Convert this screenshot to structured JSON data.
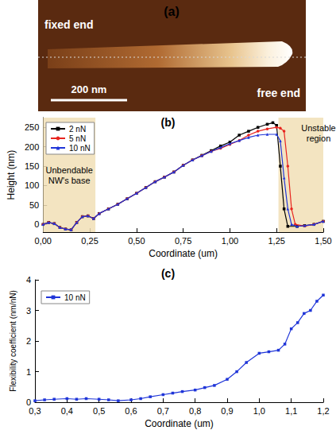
{
  "panel_a": {
    "label": "(a)",
    "fixed_end_label": "fixed end",
    "free_end_label": "free end",
    "scale_bar": "200 nm"
  },
  "chart_data": [
    {
      "type": "line",
      "title": "(b)",
      "x_label": "Coordinate (um)",
      "y_label": "Height (nm)",
      "xlim": [
        0,
        1.5
      ],
      "xticks": [
        {
          "value": 0,
          "label": "0,00"
        },
        {
          "value": 0.25,
          "label": "0,25"
        },
        {
          "value": 0.5,
          "label": "0,50"
        },
        {
          "value": 0.75,
          "label": "0,75"
        },
        {
          "value": 1,
          "label": "1,00"
        },
        {
          "value": 1.25,
          "label": "1,25"
        },
        {
          "value": 1.5,
          "label": "1,50"
        }
      ],
      "ylim": [
        -20,
        275
      ],
      "yticks": [
        0,
        50,
        100,
        150,
        200,
        250
      ],
      "grid": false,
      "legend": "top-left",
      "annotations": [
        {
          "text": "Unbendable NW's base",
          "x_range": [
            0,
            0.28
          ]
        },
        {
          "text": "Unstable region",
          "x_range": [
            1.26,
            1.5
          ]
        }
      ],
      "series": [
        {
          "name": "2 nN",
          "color": "#000000",
          "marker": "square",
          "x": [
            0,
            0.03,
            0.06,
            0.09,
            0.12,
            0.15,
            0.18,
            0.21,
            0.24,
            0.27,
            0.3,
            0.35,
            0.4,
            0.45,
            0.5,
            0.55,
            0.6,
            0.65,
            0.7,
            0.75,
            0.8,
            0.85,
            0.9,
            0.95,
            1.0,
            1.05,
            1.1,
            1.15,
            1.2,
            1.23,
            1.25,
            1.27,
            1.29,
            1.31,
            1.36,
            1.4,
            1.45,
            1.5
          ],
          "values": [
            0,
            5,
            2,
            -8,
            -12,
            -14,
            5,
            20,
            22,
            15,
            28,
            40,
            52,
            66,
            80,
            95,
            110,
            122,
            135,
            152,
            166,
            178,
            190,
            202,
            212,
            230,
            240,
            250,
            258,
            262,
            255,
            150,
            40,
            -5,
            -5,
            -3,
            0,
            8
          ]
        },
        {
          "name": "5 nN",
          "color": "#e8251f",
          "marker": "circle",
          "x": [
            0,
            0.03,
            0.06,
            0.09,
            0.12,
            0.15,
            0.18,
            0.21,
            0.24,
            0.27,
            0.3,
            0.35,
            0.4,
            0.45,
            0.5,
            0.55,
            0.6,
            0.65,
            0.7,
            0.75,
            0.8,
            0.85,
            0.9,
            0.95,
            1.0,
            1.05,
            1.1,
            1.15,
            1.2,
            1.25,
            1.27,
            1.29,
            1.31,
            1.33,
            1.35,
            1.4,
            1.45,
            1.5
          ],
          "values": [
            0,
            5,
            2,
            -8,
            -12,
            -14,
            5,
            20,
            22,
            15,
            28,
            40,
            52,
            66,
            80,
            95,
            110,
            122,
            135,
            152,
            166,
            177,
            188,
            196,
            206,
            216,
            230,
            240,
            246,
            250,
            248,
            240,
            150,
            40,
            0,
            -4,
            0,
            8
          ]
        },
        {
          "name": "10 nN",
          "color": "#1f35d8",
          "marker": "triangle",
          "x": [
            0,
            0.03,
            0.06,
            0.09,
            0.12,
            0.15,
            0.18,
            0.21,
            0.24,
            0.27,
            0.3,
            0.35,
            0.4,
            0.45,
            0.5,
            0.55,
            0.6,
            0.65,
            0.7,
            0.75,
            0.8,
            0.85,
            0.9,
            0.95,
            1.0,
            1.05,
            1.1,
            1.15,
            1.2,
            1.25,
            1.27,
            1.29,
            1.31,
            1.33,
            1.36,
            1.4,
            1.45,
            1.5
          ],
          "values": [
            0,
            5,
            2,
            -8,
            -12,
            -14,
            5,
            20,
            22,
            15,
            28,
            40,
            52,
            66,
            80,
            95,
            110,
            122,
            135,
            152,
            166,
            177,
            188,
            198,
            208,
            216,
            224,
            230,
            232,
            232,
            215,
            120,
            40,
            0,
            -5,
            -3,
            0,
            8
          ]
        }
      ]
    },
    {
      "type": "line",
      "title": "(c)",
      "x_label": "Coordinate (um)",
      "y_label": "Flexibility coefficient (nm/nN)",
      "xlim": [
        0.3,
        1.2
      ],
      "xticks": [
        {
          "value": 0.3,
          "label": "0,3"
        },
        {
          "value": 0.4,
          "label": "0,4"
        },
        {
          "value": 0.5,
          "label": "0,5"
        },
        {
          "value": 0.6,
          "label": "0,6"
        },
        {
          "value": 0.7,
          "label": "0,7"
        },
        {
          "value": 0.8,
          "label": "0,8"
        },
        {
          "value": 0.9,
          "label": "0,9"
        },
        {
          "value": 1.0,
          "label": "1,0"
        },
        {
          "value": 1.1,
          "label": "1,1"
        },
        {
          "value": 1.2,
          "label": "1,2"
        }
      ],
      "ylim": [
        0,
        4
      ],
      "yticks": [
        0,
        1,
        2,
        3,
        4
      ],
      "grid": false,
      "legend": "top-left",
      "series": [
        {
          "name": "10 nN",
          "color": "#1f35d8",
          "marker": "square",
          "x": [
            0.3,
            0.33,
            0.36,
            0.4,
            0.43,
            0.46,
            0.5,
            0.53,
            0.56,
            0.6,
            0.63,
            0.66,
            0.7,
            0.73,
            0.76,
            0.8,
            0.83,
            0.86,
            0.9,
            0.93,
            0.96,
            1.0,
            1.03,
            1.06,
            1.08,
            1.1,
            1.12,
            1.14,
            1.16,
            1.18,
            1.2
          ],
          "values": [
            0.05,
            0.08,
            0.1,
            0.12,
            0.1,
            0.12,
            0.1,
            0.08,
            0.05,
            0.08,
            0.12,
            0.18,
            0.25,
            0.3,
            0.35,
            0.4,
            0.48,
            0.55,
            0.75,
            1.0,
            1.3,
            1.6,
            1.65,
            1.7,
            1.9,
            2.4,
            2.6,
            2.9,
            3.0,
            3.3,
            3.5
          ]
        }
      ]
    }
  ]
}
